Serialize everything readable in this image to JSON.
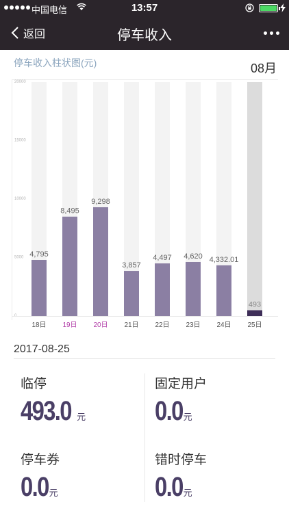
{
  "status_bar": {
    "carrier": "中国电信",
    "time": "13:57"
  },
  "nav": {
    "back_label": "返回",
    "title": "停车收入"
  },
  "chart_header": {
    "title": "停车收入柱状图(元)",
    "month": "08月"
  },
  "chart_data": {
    "type": "bar",
    "categories": [
      "18日",
      "19日",
      "20日",
      "21日",
      "22日",
      "23日",
      "24日",
      "25日"
    ],
    "values": [
      4795,
      8495,
      9298,
      3857,
      4497,
      4620,
      4332.01,
      493
    ],
    "value_labels": [
      "4,795",
      "8,495",
      "9,298",
      "3,857",
      "4,497",
      "4,620",
      "4,332.01",
      "493"
    ],
    "y_ticks": [
      "0",
      "5000",
      "10000",
      "15000",
      "20000"
    ],
    "ylim": [
      0,
      20000
    ],
    "highlight_categories": [
      "19日",
      "20日"
    ],
    "selected_category": "25日",
    "colors": {
      "bar": "#8b7fa3",
      "bar_track": "#f3f3f3",
      "selected_bar": "#3e2e58",
      "selected_track": "#dcdcdc",
      "highlight_label": "#b23ea8",
      "label": "#666666"
    }
  },
  "summary": {
    "date": "2017-08-25",
    "items": [
      {
        "label": "临停",
        "value": "493.0",
        "unit": "元"
      },
      {
        "label": "固定用户",
        "value": "0.0",
        "unit": "元"
      },
      {
        "label": "停车券",
        "value": "0.0",
        "unit": "元"
      },
      {
        "label": "错时停车",
        "value": "0.0",
        "unit": "元"
      }
    ]
  }
}
